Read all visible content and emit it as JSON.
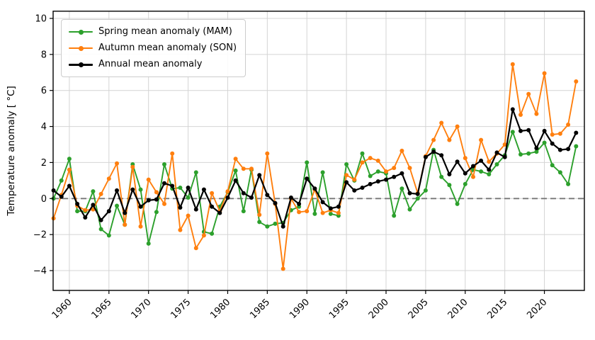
{
  "figure": {
    "background": "#ffffff"
  },
  "chart_data": {
    "type": "line",
    "title": "",
    "xlabel": "",
    "ylabel": "Temperature anomaly [ °C]",
    "grid": true,
    "legend_position": "upper-left",
    "xlim": [
      1957.95,
      2025.05
    ],
    "ylim": [
      -5.1,
      10.4
    ],
    "xticks": [
      1960,
      1965,
      1970,
      1975,
      1980,
      1985,
      1990,
      1995,
      2000,
      2005,
      2010,
      2015,
      2020
    ],
    "xtick_labels": [
      "1960",
      "1965",
      "1970",
      "1975",
      "1980",
      "1985",
      "1990",
      "1995",
      "2000",
      "2005",
      "2010",
      "2015",
      "2020"
    ],
    "yticks": [
      -4,
      -2,
      0,
      2,
      4,
      6,
      8,
      10
    ],
    "ytick_labels": [
      "−4",
      "−2",
      "0",
      "2",
      "4",
      "6",
      "8",
      "10"
    ],
    "zero_line": {
      "value": 0,
      "style": "dashed",
      "color": "#777777"
    },
    "grid_color": "#d4d4d4",
    "x": [
      1958,
      1959,
      1960,
      1961,
      1962,
      1963,
      1964,
      1965,
      1966,
      1967,
      1968,
      1969,
      1970,
      1971,
      1972,
      1973,
      1974,
      1975,
      1976,
      1977,
      1978,
      1979,
      1980,
      1981,
      1982,
      1983,
      1984,
      1985,
      1986,
      1987,
      1988,
      1989,
      1990,
      1991,
      1992,
      1993,
      1994,
      1995,
      1996,
      1997,
      1998,
      1999,
      2000,
      2001,
      2002,
      2003,
      2004,
      2005,
      2006,
      2007,
      2008,
      2009,
      2010,
      2011,
      2012,
      2013,
      2014,
      2015,
      2016,
      2017,
      2018,
      2019,
      2020,
      2021,
      2022,
      2023,
      2024
    ],
    "series": [
      {
        "name": "Spring mean anomaly (MAM)",
        "color": "#2ca02c",
        "values": [
          0.0,
          1.0,
          2.2,
          -0.7,
          -0.7,
          0.4,
          -1.7,
          -2.05,
          -0.4,
          -1.45,
          1.9,
          0.5,
          -2.5,
          -0.75,
          1.9,
          0.55,
          0.6,
          0.05,
          1.45,
          -1.85,
          -1.95,
          -0.45,
          0.35,
          1.55,
          -0.7,
          1.6,
          -1.3,
          -1.55,
          -1.4,
          -1.35,
          -0.65,
          -0.45,
          2.0,
          -0.85,
          1.45,
          -0.85,
          -0.95,
          1.9,
          1.0,
          2.5,
          1.25,
          1.5,
          1.4,
          -0.95,
          0.55,
          -0.6,
          0.0,
          0.45,
          2.7,
          1.2,
          0.75,
          -0.3,
          0.8,
          1.6,
          1.5,
          1.35,
          1.9,
          2.4,
          3.7,
          2.45,
          2.5,
          2.6,
          3.1,
          1.85,
          1.45,
          0.8,
          2.9
        ]
      },
      {
        "name": "Autumn mean anomaly (SON)",
        "color": "#ff7f0e",
        "values": [
          -1.1,
          0.2,
          1.6,
          -0.4,
          -0.65,
          -0.6,
          0.25,
          1.1,
          1.95,
          -1.45,
          1.75,
          -1.55,
          1.05,
          0.35,
          -0.3,
          2.5,
          -1.75,
          -0.95,
          -2.75,
          -2.05,
          0.3,
          -0.7,
          0.4,
          2.2,
          1.65,
          1.65,
          -0.9,
          2.5,
          -0.3,
          -3.9,
          0.0,
          -0.75,
          -0.7,
          0.5,
          -0.8,
          -0.65,
          -0.8,
          1.3,
          1.05,
          2.0,
          2.25,
          2.1,
          1.5,
          1.7,
          2.65,
          1.7,
          0.3,
          2.35,
          3.25,
          4.2,
          3.25,
          4.0,
          2.25,
          1.2,
          3.25,
          2.05,
          2.5,
          3.0,
          7.45,
          4.65,
          5.8,
          4.7,
          6.95,
          3.55,
          3.6,
          4.1,
          6.5
        ]
      },
      {
        "name": "Annual mean anomaly",
        "color": "#000000",
        "values": [
          0.45,
          0.1,
          0.7,
          -0.3,
          -1.05,
          -0.35,
          -1.2,
          -0.7,
          0.45,
          -0.8,
          0.5,
          -0.45,
          -0.1,
          -0.05,
          0.85,
          0.7,
          -0.5,
          0.6,
          -0.6,
          0.5,
          -0.45,
          -0.8,
          0.05,
          1.0,
          0.3,
          0.05,
          1.3,
          0.2,
          -0.25,
          -1.55,
          0.05,
          -0.3,
          1.1,
          0.55,
          -0.2,
          -0.55,
          -0.45,
          0.9,
          0.45,
          0.6,
          0.8,
          0.95,
          1.05,
          1.2,
          1.4,
          0.3,
          0.25,
          2.3,
          2.6,
          2.4,
          1.35,
          2.05,
          1.4,
          1.8,
          2.1,
          1.6,
          2.55,
          2.3,
          4.95,
          3.75,
          3.8,
          2.8,
          3.75,
          3.05,
          2.7,
          2.75,
          3.65
        ]
      }
    ]
  }
}
